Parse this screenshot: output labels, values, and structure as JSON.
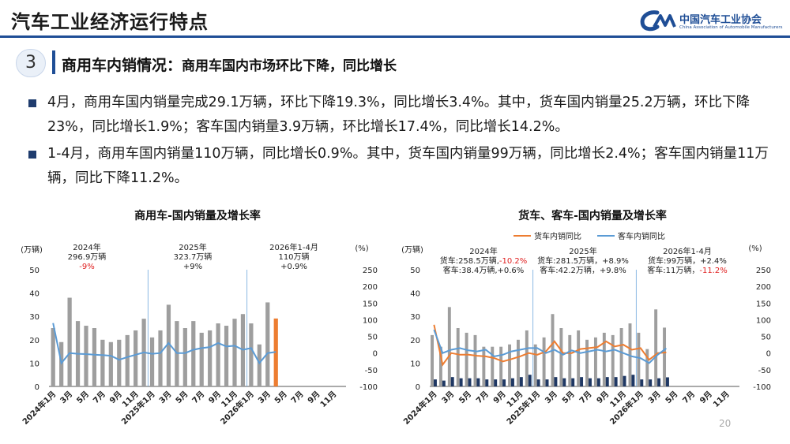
{
  "header": {
    "title": "汽车工业经济运行特点"
  },
  "logo": {
    "name_cn": "中国汽车工业协会",
    "name_en": "China Association of Automobile Manufacturers"
  },
  "section": {
    "number": "3",
    "heading": "商用车内销情况：",
    "subheading": "商用车国内市场环比下降，同比增长"
  },
  "bullets": [
    "4月，商用车国内销量完成29.1万辆，环比下降19.3%，同比增长3.4%。其中，货车国内销量25.2万辆，环比下降23%，同比增长1.9%；客车国内销量3.9万辆，环比增长17.4%，同比增长14.2%。",
    "1-4月，商用车国内销量110万辆，同比增长0.9%。其中，货车国内销量99万辆，同比增长2.4%；客车国内销量11万辆，同比下降11.2%。"
  ],
  "page_number": "20",
  "colors": {
    "brand": "#1f4e96",
    "bar_gray": "#9e9e9e",
    "bar_highlight": "#ed7d31",
    "line_blue": "#5b9bd5",
    "line_orange": "#ed7d31",
    "bar_navy": "#1f3864",
    "red": "#e02020"
  },
  "chart_data": [
    {
      "type": "bar",
      "title": "商用车-国内销量及增长率",
      "y_unit_left": "(万辆)",
      "y_unit_right": "(%)",
      "ylim": [
        0,
        50
      ],
      "y2lim": [
        -100,
        250
      ],
      "y_ticks": [
        0,
        10,
        20,
        30,
        40,
        50
      ],
      "y2_ticks": [
        -100,
        -50,
        0,
        50,
        100,
        150,
        200,
        250
      ],
      "x_labels": [
        "2024年1月",
        "3月",
        "5月",
        "7月",
        "9月",
        "11月",
        "2025年1月",
        "3月",
        "5月",
        "7月",
        "9月",
        "11月",
        "2026年1月",
        "3月",
        "5月",
        "7月",
        "9月",
        "11月"
      ],
      "annotations": [
        {
          "period": "2024年",
          "total": "296.9万辆",
          "change": "-9%",
          "change_red": true
        },
        {
          "period": "2025年",
          "total": "323.7万辆",
          "change": "+9%",
          "change_red": false
        },
        {
          "period": "2026年1-4月",
          "total": "110万辆",
          "change": "+0.9%",
          "change_red": false
        }
      ],
      "series": [
        {
          "kind": "bar",
          "values": [
            25,
            19,
            38,
            28,
            26,
            25,
            20,
            19,
            20,
            22,
            24,
            29,
            21,
            24,
            35,
            28,
            25,
            28,
            23,
            24,
            27,
            26,
            29,
            31,
            27,
            18,
            36,
            29.1,
            null,
            null,
            null,
            null,
            null,
            null,
            null,
            null
          ]
        },
        {
          "kind": "line",
          "values": [
            90,
            -30,
            0,
            -2,
            -3,
            -5,
            -6,
            -8,
            -20,
            -12,
            -5,
            2,
            -2,
            0,
            30,
            0,
            0,
            10,
            15,
            18,
            30,
            20,
            22,
            10,
            15,
            -30,
            0,
            3.4,
            null,
            null,
            null,
            null,
            null,
            null,
            null,
            null
          ]
        }
      ],
      "highlight_index": 27
    },
    {
      "type": "bar",
      "title": "货车、客车-国内销量及增长率",
      "y_unit_left": "(万辆)",
      "y_unit_right": "(%)",
      "ylim": [
        0,
        50
      ],
      "y2lim": [
        -100,
        250
      ],
      "y_ticks": [
        0,
        10,
        20,
        30,
        40,
        50
      ],
      "y2_ticks": [
        -100,
        -50,
        0,
        50,
        100,
        150,
        200,
        250
      ],
      "x_labels": [
        "2024年1月",
        "3月",
        "5月",
        "7月",
        "9月",
        "11月",
        "2025年1月",
        "3月",
        "5月",
        "7月",
        "9月",
        "11月",
        "2026年1月",
        "3月",
        "5月",
        "7月",
        "9月",
        "11月"
      ],
      "legend": [
        "货车内销同比",
        "客车内销同比"
      ],
      "annotations": [
        {
          "period": "2024年",
          "line1": "货车:258.5万辆,",
          "line1_change": "-10.2%",
          "line1_red": true,
          "line2": "客车:38.4万辆,+0.6%",
          "line2_change": "",
          "line2_red": false
        },
        {
          "period": "2025年",
          "line1": "货车:281.5万辆，+8.9%",
          "line1_change": "",
          "line1_red": false,
          "line2": "客车:42.2万辆，+9.8%",
          "line2_change": "",
          "line2_red": false
        },
        {
          "period": "2026年1-4月",
          "line1": "货车:99万辆，+2.4%",
          "line1_change": "",
          "line1_red": false,
          "line2": "客车:11万辆，",
          "line2_change": "-11.2%",
          "line2_red": true
        }
      ],
      "series": [
        {
          "name": "货车内销",
          "kind": "bar",
          "values": [
            22,
            17,
            34,
            25,
            23,
            22,
            17,
            17,
            17,
            18,
            20,
            24,
            18,
            21,
            31,
            25,
            22,
            24,
            20,
            21,
            23,
            22,
            25,
            27,
            23,
            16,
            33,
            25.2,
            null,
            null,
            null,
            null,
            null,
            null,
            null,
            null
          ]
        },
        {
          "name": "客车内销",
          "kind": "bar",
          "values": [
            3,
            2.5,
            4,
            3.5,
            3.5,
            3.5,
            3,
            3,
            3,
            3.5,
            4,
            5,
            3,
            3,
            4,
            3.5,
            3.5,
            4,
            3.5,
            3.5,
            4,
            4,
            4.5,
            5,
            3,
            3,
            3.5,
            3.9,
            null,
            null,
            null,
            null,
            null,
            null,
            null,
            null
          ]
        },
        {
          "name": "货车内销同比",
          "kind": "line",
          "values": [
            85,
            -35,
            0,
            -5,
            -5,
            -8,
            -10,
            -15,
            -25,
            -18,
            -10,
            0,
            -5,
            5,
            35,
            0,
            0,
            12,
            15,
            18,
            35,
            20,
            25,
            10,
            15,
            -20,
            0,
            1.9,
            null,
            null,
            null,
            null,
            null,
            null,
            null,
            null
          ]
        },
        {
          "name": "客车内销同比",
          "kind": "line",
          "values": [
            70,
            0,
            10,
            15,
            8,
            5,
            10,
            -10,
            -5,
            5,
            10,
            15,
            15,
            0,
            10,
            -5,
            8,
            0,
            5,
            10,
            5,
            10,
            0,
            -10,
            -15,
            -30,
            -5,
            14.2,
            null,
            null,
            null,
            null,
            null,
            null,
            null,
            null
          ]
        }
      ]
    }
  ]
}
